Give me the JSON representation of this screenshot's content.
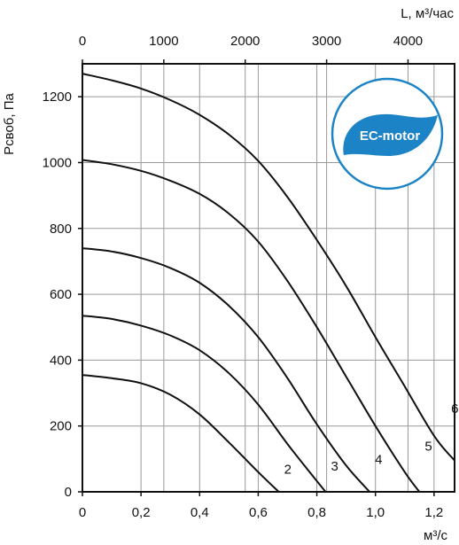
{
  "chart_data": {
    "type": "line",
    "title": "",
    "xlabel": "м³/с",
    "x2label": "L, м³/час",
    "ylabel": "Pсвоб, Па",
    "xlim": [
      0,
      1.27
    ],
    "x2lim": [
      0,
      4572
    ],
    "ylim": [
      0,
      1300
    ],
    "grid": true,
    "x_ticks": [
      0,
      0.2,
      0.4,
      0.6,
      0.8,
      1.0,
      1.2
    ],
    "x_tick_labels": [
      "0",
      "0,2",
      "0,4",
      "0,6",
      "0,8",
      "1,0",
      "1,2"
    ],
    "x2_ticks": [
      0,
      1000,
      2000,
      3000,
      4000
    ],
    "x2_tick_labels": [
      "0",
      "1000",
      "2000",
      "3000",
      "4000"
    ],
    "y_ticks": [
      0,
      200,
      400,
      600,
      800,
      1000,
      1200
    ],
    "y_tick_labels": [
      "0",
      "200",
      "400",
      "600",
      "800",
      "1000",
      "1200"
    ],
    "series": [
      {
        "name": "2",
        "x": [
          0,
          0.1,
          0.2,
          0.3,
          0.4,
          0.5,
          0.6,
          0.67
        ],
        "y": [
          355,
          345,
          330,
          295,
          235,
          150,
          60,
          0
        ]
      },
      {
        "name": "3",
        "x": [
          0,
          0.1,
          0.2,
          0.3,
          0.4,
          0.5,
          0.6,
          0.7,
          0.78,
          0.83
        ],
        "y": [
          535,
          525,
          505,
          475,
          430,
          360,
          265,
          145,
          55,
          0
        ]
      },
      {
        "name": "4",
        "x": [
          0,
          0.1,
          0.2,
          0.3,
          0.4,
          0.5,
          0.6,
          0.7,
          0.8,
          0.9,
          0.98
        ],
        "y": [
          740,
          730,
          710,
          680,
          635,
          565,
          470,
          345,
          205,
          80,
          0
        ]
      },
      {
        "name": "5",
        "x": [
          0,
          0.1,
          0.2,
          0.3,
          0.4,
          0.5,
          0.6,
          0.7,
          0.8,
          0.9,
          1.0,
          1.1,
          1.15
        ],
        "y": [
          1008,
          995,
          975,
          945,
          905,
          845,
          760,
          640,
          500,
          350,
          200,
          60,
          0
        ]
      },
      {
        "name": "6",
        "x": [
          0,
          0.1,
          0.2,
          0.3,
          0.4,
          0.5,
          0.6,
          0.7,
          0.8,
          0.9,
          1.0,
          1.1,
          1.2,
          1.27
        ],
        "y": [
          1270,
          1250,
          1225,
          1190,
          1145,
          1085,
          1005,
          895,
          765,
          625,
          470,
          320,
          170,
          95
        ]
      }
    ],
    "label_points": [
      {
        "name": "2",
        "x": 0.67,
        "y": 55
      },
      {
        "name": "3",
        "x": 0.83,
        "y": 65
      },
      {
        "name": "4",
        "x": 0.98,
        "y": 85
      },
      {
        "name": "5",
        "x": 1.15,
        "y": 125
      },
      {
        "name": "6",
        "x": 1.24,
        "y": 240
      }
    ],
    "logo": {
      "text": "EC-motor",
      "color": "#1c84c6"
    },
    "colors": {
      "curve": "#111111",
      "grid": "#9a9a9a",
      "axis": "#111111"
    }
  }
}
